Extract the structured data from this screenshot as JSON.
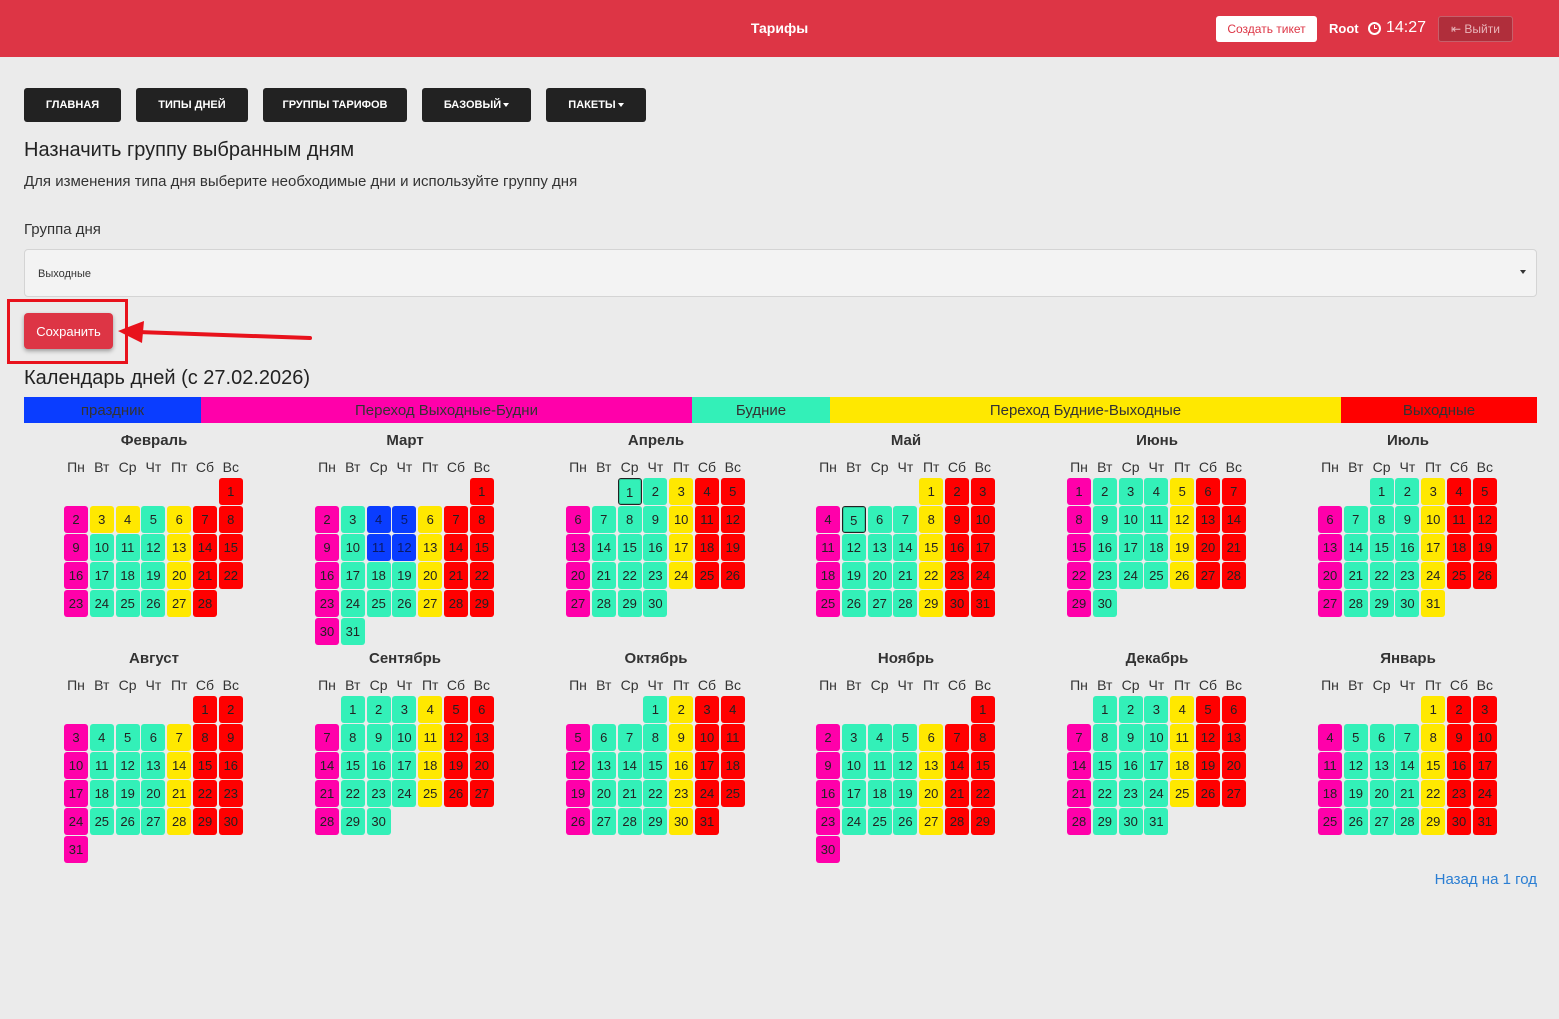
{
  "header": {
    "title": "Тарифы",
    "create_ticket": "Создать тикет",
    "user": "Root",
    "time": "14:27",
    "logout": "Выйти"
  },
  "nav": {
    "home": "ГЛАВНАЯ",
    "day_types": "ТИПЫ ДНЕЙ",
    "tariff_groups": "ГРУППЫ ТАРИФОВ",
    "base": "БАЗОВЫЙ",
    "packages": "ПАКЕТЫ"
  },
  "assign": {
    "title": "Назначить группу выбранным дням",
    "hint": "Для изменения типа дня выберите необходимые дни и используйте группу дня",
    "group_label": "Группа дня",
    "group_value": "Выходные",
    "save": "Сохранить"
  },
  "calendar": {
    "title": "Календарь дней (с 27.02.2026)",
    "back_link": "Назад на 1 год",
    "weekdays": [
      "Пн",
      "Вт",
      "Ср",
      "Чт",
      "Пт",
      "Сб",
      "Вс"
    ],
    "colors": {
      "H": "#0a3dff",
      "P": "#ff00aa",
      "W": "#33f0b8",
      "Y": "#ffe800",
      "R": "#ff0000"
    },
    "legend": [
      {
        "label": "праздник",
        "code": "H"
      },
      {
        "label": "Переход Выходные-Будни",
        "code": "P"
      },
      {
        "label": "Будние",
        "code": "W"
      },
      {
        "label": "Переход Будние-Выходные",
        "code": "Y"
      },
      {
        "label": "Выходные",
        "code": "R"
      }
    ],
    "months": [
      {
        "name": "Февраль",
        "start": 6,
        "codes": "RPYYWYRRPWWWYRRPWWWYRRPWWWYR",
        "selected": []
      },
      {
        "name": "Март",
        "start": 6,
        "codes": "RPWHHYRRPWHHYRRPWWWYRRPWWWYRRPW",
        "selected": []
      },
      {
        "name": "Апрель",
        "start": 2,
        "codes": "WWYRRPWWWYRRPWWWYRRPWWWYRRPWWW",
        "selected": [
          1
        ]
      },
      {
        "name": "Май",
        "start": 4,
        "codes": "YRRPWWWYRRPWWWYRRPWWWYRRPWWWYRR",
        "selected": [
          5
        ]
      },
      {
        "name": "Июнь",
        "start": 0,
        "codes": "PWWWYRRPWWWYRRPWWWYRRPWWWYRRPW",
        "selected": []
      },
      {
        "name": "Июль",
        "start": 2,
        "codes": "WWYRRPWWWYRRPWWWYRRPWWWYRRPWWWY",
        "selected": []
      },
      {
        "name": "Август",
        "start": 5,
        "codes": "RRPWWWYRRPWWWYRRPWWWYRRPWWWYRRP",
        "selected": []
      },
      {
        "name": "Сентябрь",
        "start": 1,
        "codes": "WWWYRRPWWWYRRPWWWYRRPWWWYRRPWW",
        "selected": []
      },
      {
        "name": "Октябрь",
        "start": 3,
        "codes": "WYRRPWWWYRRPWWWYRRPWWWYRRPWWWYR",
        "selected": []
      },
      {
        "name": "Ноябрь",
        "start": 6,
        "codes": "RPWWWYRRPWWWYRRPWWWYRRPWWWYRRP",
        "selected": []
      },
      {
        "name": "Декабрь",
        "start": 1,
        "codes": "WWWYRRPWWWYRRPWWWYRRPWWWYRRPWWW",
        "selected": []
      },
      {
        "name": "Январь",
        "start": 4,
        "codes": "YRRPWWWYRRPWWWYRRPWWWYRRPWWWYRR",
        "selected": []
      }
    ]
  }
}
